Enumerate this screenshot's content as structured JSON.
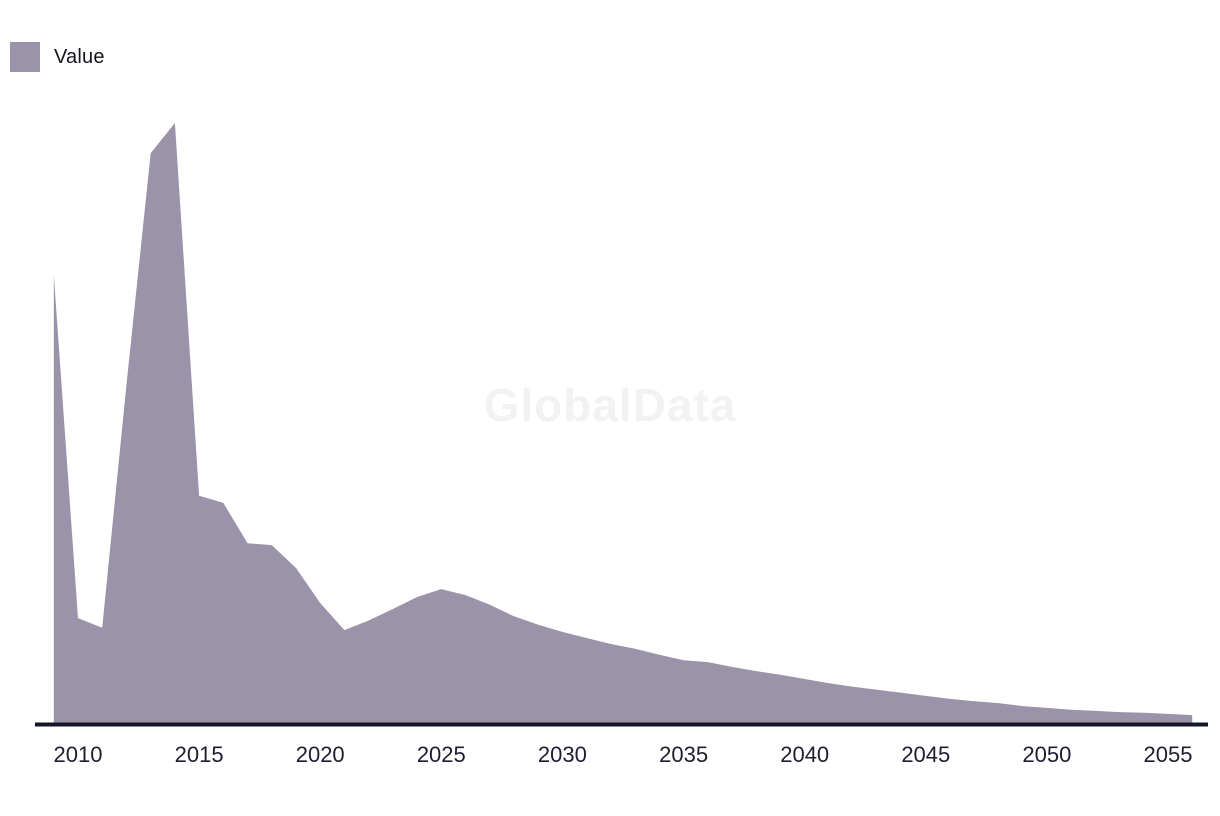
{
  "legend": {
    "items": [
      {
        "label": "Value",
        "color": "#9a93aa"
      }
    ]
  },
  "watermark": "GlobalData",
  "chart_data": {
    "type": "area",
    "title": "",
    "xlabel": "",
    "ylabel": "",
    "grid": false,
    "legend_position": "top-left",
    "background": "#ffffff",
    "baseline_color": "#161629",
    "tick_color": "#1e1e32",
    "x_ticks": [
      "2010",
      "2015",
      "2020",
      "2025",
      "2030",
      "2035",
      "2040",
      "2045",
      "2050",
      "2055"
    ],
    "x_range": [
      2009,
      2056
    ],
    "y_range": [
      0,
      100
    ],
    "y_scale_note": "no y-axis shown; values estimated relative to peak = 100",
    "series": [
      {
        "name": "Value",
        "color": "#9a93aa",
        "x": [
          2009,
          2010,
          2011,
          2012,
          2013,
          2014,
          2015,
          2016,
          2017,
          2018,
          2019,
          2020,
          2021,
          2022,
          2023,
          2024,
          2025,
          2026,
          2027,
          2028,
          2029,
          2030,
          2031,
          2032,
          2033,
          2034,
          2035,
          2036,
          2037,
          2038,
          2039,
          2040,
          2041,
          2042,
          2043,
          2044,
          2045,
          2046,
          2047,
          2048,
          2049,
          2050,
          2051,
          2052,
          2053,
          2054,
          2055,
          2056
        ],
        "values": [
          74.8,
          17.9,
          16.3,
          56.5,
          95.0,
          100.0,
          38.2,
          37.0,
          30.3,
          30.0,
          26.2,
          20.4,
          15.9,
          17.5,
          19.4,
          21.4,
          22.7,
          21.7,
          20.1,
          18.2,
          16.8,
          15.6,
          14.6,
          13.6,
          12.8,
          11.8,
          10.9,
          10.6,
          9.8,
          9.1,
          8.5,
          7.8,
          7.1,
          6.5,
          6.0,
          5.5,
          5.0,
          4.5,
          4.1,
          3.8,
          3.3,
          3.0,
          2.7,
          2.5,
          2.3,
          2.2,
          2.0,
          1.8
        ]
      }
    ]
  }
}
